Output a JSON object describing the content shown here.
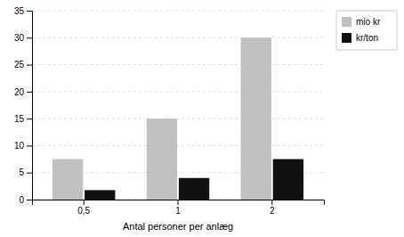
{
  "chart_data": {
    "type": "bar",
    "xlabel": "Antal personer per anlæg",
    "categories": [
      "0,5",
      "1",
      "2"
    ],
    "series": [
      {
        "name": "mio kr",
        "color": "#c0c0c0",
        "values": [
          7.5,
          15.0,
          30.0
        ]
      },
      {
        "name": "kr/ton",
        "color": "#111111",
        "values": [
          1.75,
          4.0,
          7.5
        ]
      }
    ],
    "ylim": [
      0,
      35
    ],
    "yticks": [
      0,
      5,
      10,
      15,
      20,
      25,
      30,
      35
    ],
    "grid": true,
    "legend": "upper right"
  }
}
